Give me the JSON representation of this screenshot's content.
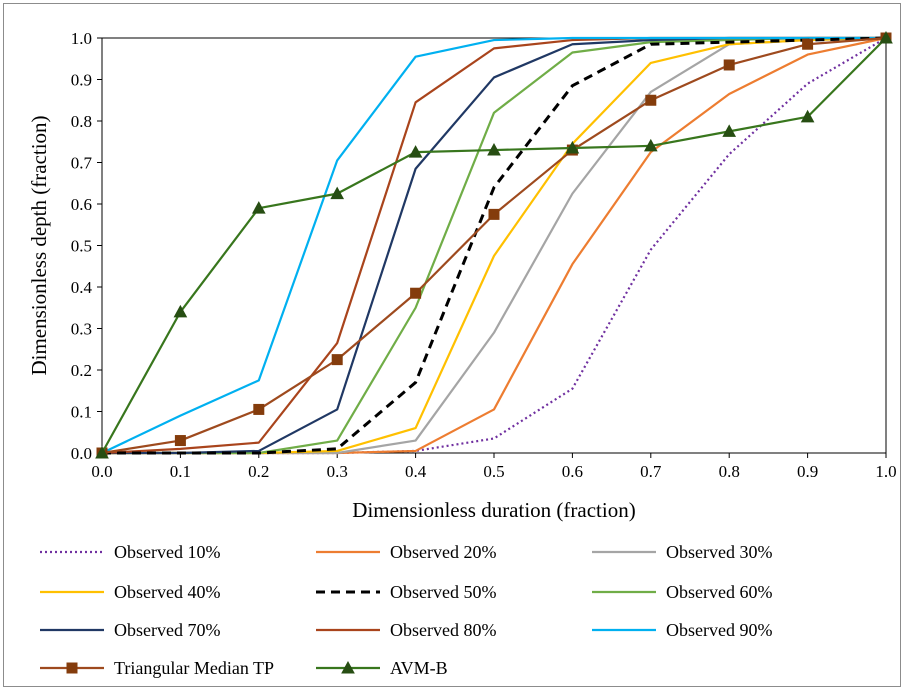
{
  "chart_data": {
    "type": "line",
    "title": "",
    "xlabel": "Dimensionless duration (fraction)",
    "ylabel": "Dimensionless depth (fraction)",
    "xlim": [
      0,
      1
    ],
    "ylim": [
      0,
      1
    ],
    "x_ticks": [
      "0.0",
      "0.1",
      "0.2",
      "0.3",
      "0.4",
      "0.5",
      "0.6",
      "0.7",
      "0.8",
      "0.9",
      "1.0"
    ],
    "y_ticks": [
      "0.0",
      "0.1",
      "0.2",
      "0.3",
      "0.4",
      "0.5",
      "0.6",
      "0.7",
      "0.8",
      "0.9",
      "1.0"
    ],
    "grid": false,
    "legend_position": "bottom",
    "x": [
      0,
      0.1,
      0.2,
      0.3,
      0.4,
      0.5,
      0.6,
      0.7,
      0.8,
      0.9,
      1.0
    ],
    "series": [
      {
        "name": "Observed 10%",
        "color": "#7030a0",
        "style": "dotted",
        "marker": "none",
        "values": [
          0,
          0,
          0,
          0,
          0.005,
          0.035,
          0.155,
          0.49,
          0.72,
          0.89,
          1.0
        ]
      },
      {
        "name": "Observed 20%",
        "color": "#ed7d31",
        "style": "solid",
        "marker": "none",
        "values": [
          0,
          0,
          0,
          0,
          0.005,
          0.105,
          0.455,
          0.725,
          0.865,
          0.96,
          1.0
        ]
      },
      {
        "name": "Observed 30%",
        "color": "#a5a5a5",
        "style": "solid",
        "marker": "none",
        "values": [
          0,
          0,
          0,
          0,
          0.03,
          0.29,
          0.625,
          0.87,
          0.985,
          0.995,
          1.0
        ]
      },
      {
        "name": "Observed 40%",
        "color": "#ffc000",
        "style": "solid",
        "marker": "none",
        "values": [
          0,
          0,
          0,
          0.005,
          0.06,
          0.475,
          0.745,
          0.94,
          0.985,
          0.995,
          1.0
        ]
      },
      {
        "name": "Observed 50%",
        "color": "#000000",
        "style": "dashed",
        "marker": "none",
        "values": [
          0,
          0,
          0,
          0.01,
          0.17,
          0.64,
          0.885,
          0.985,
          0.99,
          0.995,
          1.0
        ]
      },
      {
        "name": "Observed 60%",
        "color": "#70ad47",
        "style": "solid",
        "marker": "none",
        "values": [
          0,
          0,
          0,
          0.03,
          0.35,
          0.82,
          0.965,
          0.99,
          0.995,
          1.0,
          1.0
        ]
      },
      {
        "name": "Observed 70%",
        "color": "#203864",
        "style": "solid",
        "marker": "none",
        "values": [
          0,
          0,
          0.005,
          0.105,
          0.685,
          0.905,
          0.985,
          0.995,
          1.0,
          1.0,
          1.0
        ]
      },
      {
        "name": "Observed 80%",
        "color": "#a9441c",
        "style": "solid",
        "marker": "none",
        "values": [
          0,
          0.01,
          0.025,
          0.265,
          0.845,
          0.975,
          0.995,
          1.0,
          1.0,
          1.0,
          1.0
        ]
      },
      {
        "name": "Observed 90%",
        "color": "#00b0f0",
        "style": "solid",
        "marker": "none",
        "values": [
          0,
          0.09,
          0.175,
          0.705,
          0.955,
          0.995,
          1.0,
          1.0,
          1.0,
          1.0,
          1.0
        ]
      },
      {
        "name": "Triangular Median TP",
        "color": "#9e4a1e",
        "marker_color": "#843c0c",
        "style": "solid",
        "marker": "square",
        "values": [
          0,
          0.03,
          0.105,
          0.225,
          0.385,
          0.575,
          0.73,
          0.85,
          0.935,
          0.985,
          1.0
        ]
      },
      {
        "name": "AVM-B",
        "color": "#38761d",
        "marker_color": "#274e13",
        "style": "solid",
        "marker": "triangle",
        "values": [
          0,
          0.34,
          0.59,
          0.625,
          0.725,
          0.73,
          0.735,
          0.74,
          0.775,
          0.81,
          1.0
        ]
      }
    ]
  }
}
